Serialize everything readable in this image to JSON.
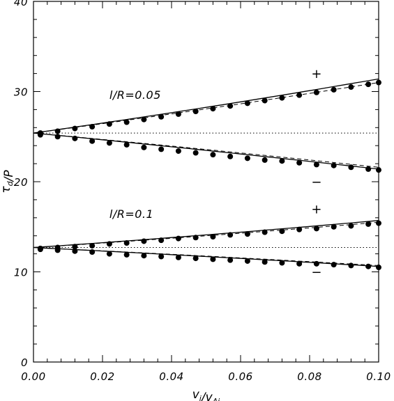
{
  "chart_data": {
    "type": "line",
    "title": "",
    "xlabel": "v_i/v_Ai",
    "ylabel": "τ_d/P",
    "xlim": [
      0.0,
      0.1
    ],
    "ylim": [
      0,
      40
    ],
    "x_ticks": [
      0.0,
      0.02,
      0.04,
      0.06,
      0.08,
      0.1
    ],
    "x_tick_labels": [
      "0.00",
      "0.02",
      "0.04",
      "0.06",
      "0.08",
      "0.10"
    ],
    "y_ticks": [
      0,
      10,
      20,
      30,
      40
    ],
    "y_tick_labels": [
      "0",
      "10",
      "20",
      "30",
      "40"
    ],
    "grid": false,
    "annotations": [
      {
        "text": "l/R=0.05",
        "x": 0.022,
        "y": 29.2
      },
      {
        "text": "l/R=0.1",
        "x": 0.022,
        "y": 16.0
      },
      {
        "text": "+",
        "x": 0.082,
        "y": 31.5
      },
      {
        "text": "−",
        "x": 0.082,
        "y": 19.5
      },
      {
        "text": "+",
        "x": 0.082,
        "y": 16.5
      },
      {
        "text": "−",
        "x": 0.082,
        "y": 9.5
      }
    ],
    "series": [
      {
        "style": "solid",
        "x": [
          0.0,
          0.1
        ],
        "y_start": 25.4,
        "y_end": 31.4,
        "curvature": 0.6
      },
      {
        "style": "dashed",
        "x": [
          0.0,
          0.1
        ],
        "y_start": 25.4,
        "y_end": 31.0,
        "curvature": 0.5
      },
      {
        "style": "points",
        "x": [
          0.002,
          0.007,
          0.012,
          0.017,
          0.022,
          0.027,
          0.032,
          0.037,
          0.042,
          0.047,
          0.052,
          0.057,
          0.062,
          0.067,
          0.072,
          0.077,
          0.082,
          0.087,
          0.092,
          0.097,
          0.1
        ],
        "y": [
          25.4,
          25.6,
          25.9,
          26.1,
          26.4,
          26.6,
          26.9,
          27.2,
          27.5,
          27.8,
          28.1,
          28.4,
          28.7,
          29.0,
          29.3,
          29.6,
          29.9,
          30.2,
          30.5,
          30.8,
          31.0
        ]
      },
      {
        "style": "dotted",
        "x": [
          0.0,
          0.1
        ],
        "y": [
          25.4,
          25.4
        ]
      },
      {
        "style": "solid",
        "x": [
          0.0,
          0.1
        ],
        "y_start": 25.4,
        "y_end": 21.4,
        "curvature": 0.3
      },
      {
        "style": "dashed",
        "x": [
          0.0,
          0.1
        ],
        "y_start": 25.4,
        "y_end": 21.6,
        "curvature": 0.3
      },
      {
        "style": "points",
        "x": [
          0.002,
          0.007,
          0.012,
          0.017,
          0.022,
          0.027,
          0.032,
          0.037,
          0.042,
          0.047,
          0.052,
          0.057,
          0.062,
          0.067,
          0.072,
          0.077,
          0.082,
          0.087,
          0.092,
          0.097,
          0.1
        ],
        "y": [
          25.2,
          25.0,
          24.8,
          24.5,
          24.3,
          24.1,
          23.8,
          23.6,
          23.4,
          23.2,
          23.0,
          22.8,
          22.6,
          22.4,
          22.3,
          22.1,
          21.9,
          21.8,
          21.6,
          21.4,
          21.3
        ]
      },
      {
        "style": "solid",
        "x": [
          0.0,
          0.1
        ],
        "y_start": 12.7,
        "y_end": 15.7,
        "curvature": 0.4
      },
      {
        "style": "dashed",
        "x": [
          0.0,
          0.1
        ],
        "y_start": 12.7,
        "y_end": 15.5,
        "curvature": 0.4
      },
      {
        "style": "points",
        "x": [
          0.002,
          0.007,
          0.012,
          0.017,
          0.022,
          0.027,
          0.032,
          0.037,
          0.042,
          0.047,
          0.052,
          0.057,
          0.062,
          0.067,
          0.072,
          0.077,
          0.082,
          0.087,
          0.092,
          0.097,
          0.1
        ],
        "y": [
          12.6,
          12.7,
          12.8,
          12.9,
          13.1,
          13.2,
          13.4,
          13.5,
          13.7,
          13.8,
          13.9,
          14.1,
          14.2,
          14.4,
          14.5,
          14.7,
          14.8,
          15.0,
          15.1,
          15.3,
          15.4
        ]
      },
      {
        "style": "dotted",
        "x": [
          0.0,
          0.1
        ],
        "y": [
          12.7,
          12.7
        ]
      },
      {
        "style": "solid",
        "x": [
          0.0,
          0.1
        ],
        "y_start": 12.7,
        "y_end": 10.6,
        "curvature": 0.2
      },
      {
        "style": "dashed",
        "x": [
          0.0,
          0.1
        ],
        "y_start": 12.7,
        "y_end": 10.7,
        "curvature": 0.2
      },
      {
        "style": "points",
        "x": [
          0.002,
          0.007,
          0.012,
          0.017,
          0.022,
          0.027,
          0.032,
          0.037,
          0.042,
          0.047,
          0.052,
          0.057,
          0.062,
          0.067,
          0.072,
          0.077,
          0.082,
          0.087,
          0.092,
          0.097,
          0.1
        ],
        "y": [
          12.5,
          12.4,
          12.3,
          12.2,
          12.0,
          11.9,
          11.8,
          11.7,
          11.6,
          11.5,
          11.4,
          11.3,
          11.2,
          11.1,
          11.0,
          10.9,
          10.9,
          10.8,
          10.7,
          10.6,
          10.5
        ]
      }
    ]
  }
}
